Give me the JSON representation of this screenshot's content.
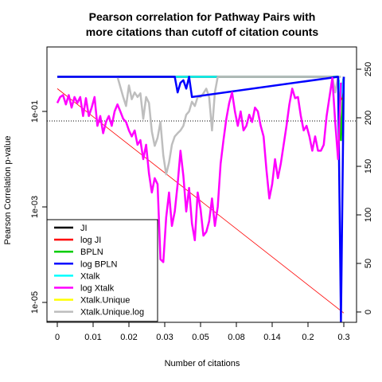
{
  "chart_data": {
    "type": "line",
    "title": [
      "Pearson correlation for Pathway Pairs with",
      "more citations than cutoff of citation counts"
    ],
    "xlabel": "Number of citations",
    "ylabel": "Pearson Correlation p-value",
    "x_ticks": [
      "0",
      "0.01",
      "0.02",
      "0.03",
      "0.05",
      "0.08",
      "0.14",
      "0.2",
      "0.3"
    ],
    "x_index_range": [
      0,
      100
    ],
    "y_log_range": [
      1e-05,
      1
    ],
    "y_ticks": [
      {
        "value": 1e-05,
        "label": "1e-05"
      },
      {
        "value": 0.001,
        "label": "1e-03"
      },
      {
        "value": 0.1,
        "label": "1e-01"
      }
    ],
    "y2_range": [
      0,
      260
    ],
    "y2_ticks": [
      0,
      50,
      100,
      150,
      200,
      250
    ],
    "threshold_p": 0.063,
    "legend": {
      "position": "bottom-left",
      "entries": [
        {
          "name": "JI",
          "color": "#000000"
        },
        {
          "name": "log JI",
          "color": "#ff0000"
        },
        {
          "name": "BPLN",
          "color": "#00cd00"
        },
        {
          "name": "log BPLN",
          "color": "#0000ff"
        },
        {
          "name": "Xtalk",
          "color": "#00ffff"
        },
        {
          "name": "log Xtalk",
          "color": "#ff00ff"
        },
        {
          "name": "Xtalk.Unique",
          "color": "#ffff00"
        },
        {
          "name": "Xtalk.Unique.log",
          "color": "#bebebe"
        }
      ]
    },
    "series": [
      {
        "name": "Xtalk.Unique",
        "color": "#ffff00",
        "x": [
          0,
          98
        ],
        "y": [
          0.53,
          0.53
        ]
      },
      {
        "name": "BPLN",
        "color": "#00cd00",
        "x": [
          0,
          98,
          99,
          100
        ],
        "y": [
          0.53,
          0.53,
          0.025,
          0.53
        ]
      },
      {
        "name": "JI",
        "color": "#000000",
        "x": [
          0,
          98,
          99,
          100
        ],
        "y": [
          0.53,
          0.53,
          0.2,
          0.53
        ]
      },
      {
        "name": "log JI",
        "color": "#ff0000",
        "x": [
          0,
          98,
          99,
          100
        ],
        "y": [
          0.53,
          0.53,
          0.18,
          0.53
        ]
      },
      {
        "name": "Xtalk",
        "color": "#00ffff",
        "x": [
          0,
          98,
          99,
          100
        ],
        "y": [
          0.53,
          0.53,
          0.2,
          0.53
        ]
      },
      {
        "name": "Xtalk.Unique.log",
        "color": "#bebebe",
        "x": [
          0,
          21,
          23,
          24,
          25,
          26,
          27,
          28,
          29,
          30,
          31,
          32,
          33,
          34,
          35,
          36,
          37,
          38,
          39,
          40,
          41,
          42,
          43,
          44,
          45,
          46,
          47,
          48,
          49,
          50,
          51,
          52,
          53,
          54,
          55,
          56,
          57,
          58,
          59,
          60,
          61,
          62,
          96,
          97,
          98,
          99
        ],
        "y": [
          0.53,
          0.53,
          0.2,
          0.13,
          0.35,
          0.18,
          0.25,
          0.2,
          0.24,
          0.07,
          0.2,
          0.15,
          0.038,
          0.019,
          0.028,
          0.06,
          0.012,
          0.0048,
          0.0085,
          0.02,
          0.03,
          0.035,
          0.04,
          0.05,
          0.085,
          0.1,
          0.16,
          0.13,
          0.2,
          0.2,
          0.24,
          0.3,
          0.2,
          0.04,
          0.25,
          0.53,
          0.53,
          0.53,
          0.53,
          0.53,
          0.53,
          0.53,
          0.53,
          0.25,
          0.53,
          0.53
        ]
      },
      {
        "name": "log BPLN",
        "color": "#0000ff",
        "x": [
          0,
          41,
          42,
          43,
          44,
          45,
          46,
          47,
          98,
          99,
          100
        ],
        "y": [
          0.53,
          0.53,
          0.25,
          0.4,
          0.45,
          0.3,
          0.53,
          0.2,
          0.53,
          4e-06,
          0.53
        ]
      },
      {
        "name": "log Xtalk",
        "color": "#ff00ff",
        "x": [
          0,
          1,
          2,
          3,
          4,
          5,
          6,
          7,
          8,
          9,
          10,
          11,
          12,
          13,
          14,
          15,
          16,
          17,
          18,
          19,
          20,
          21,
          22,
          23,
          24,
          25,
          26,
          27,
          28,
          29,
          30,
          31,
          32,
          33,
          34,
          35,
          36,
          37,
          38,
          39,
          40,
          41,
          42,
          43,
          44,
          45,
          46,
          47,
          48,
          49,
          50,
          51,
          52,
          53,
          54,
          55,
          56,
          57,
          58,
          59,
          60,
          61,
          62,
          63,
          64,
          65,
          66,
          67,
          68,
          69,
          70,
          71,
          72,
          73,
          74,
          75,
          76,
          77,
          78,
          79,
          80,
          81,
          82,
          83,
          84,
          85,
          86,
          87,
          88,
          89,
          90,
          91,
          92,
          93,
          94,
          95,
          96,
          97,
          98,
          99
        ],
        "y": [
          0.15,
          0.2,
          0.22,
          0.14,
          0.22,
          0.12,
          0.2,
          0.15,
          0.2,
          0.08,
          0.19,
          0.08,
          0.12,
          0.2,
          0.05,
          0.08,
          0.035,
          0.06,
          0.08,
          0.05,
          0.1,
          0.14,
          0.1,
          0.07,
          0.06,
          0.04,
          0.03,
          0.04,
          0.02,
          0.025,
          0.01,
          0.02,
          0.005,
          0.002,
          0.004,
          0.003,
          8e-05,
          7e-05,
          0.0006,
          0.002,
          0.0004,
          0.0008,
          0.003,
          0.015,
          0.0045,
          0.0008,
          0.0025,
          0.00045,
          0.0002,
          0.002,
          0.0009,
          0.00025,
          0.0003,
          0.0005,
          0.0015,
          0.0004,
          0.001,
          0.008,
          0.025,
          0.07,
          0.15,
          0.25,
          0.1,
          0.05,
          0.1,
          0.04,
          0.05,
          0.085,
          0.06,
          0.12,
          0.1,
          0.05,
          0.03,
          0.006,
          0.0015,
          0.003,
          0.01,
          0.004,
          0.008,
          0.02,
          0.05,
          0.14,
          0.3,
          0.19,
          0.2,
          0.08,
          0.04,
          0.05,
          0.03,
          0.015,
          0.03,
          0.015,
          0.015,
          0.02,
          0.08,
          0.2,
          0.5,
          0.06,
          0.01,
          0.4
        ]
      }
    ],
    "reference_line": {
      "color": "#ff0000",
      "x": [
        0,
        100
      ],
      "y": [
        0.3,
        6e-06
      ]
    }
  }
}
